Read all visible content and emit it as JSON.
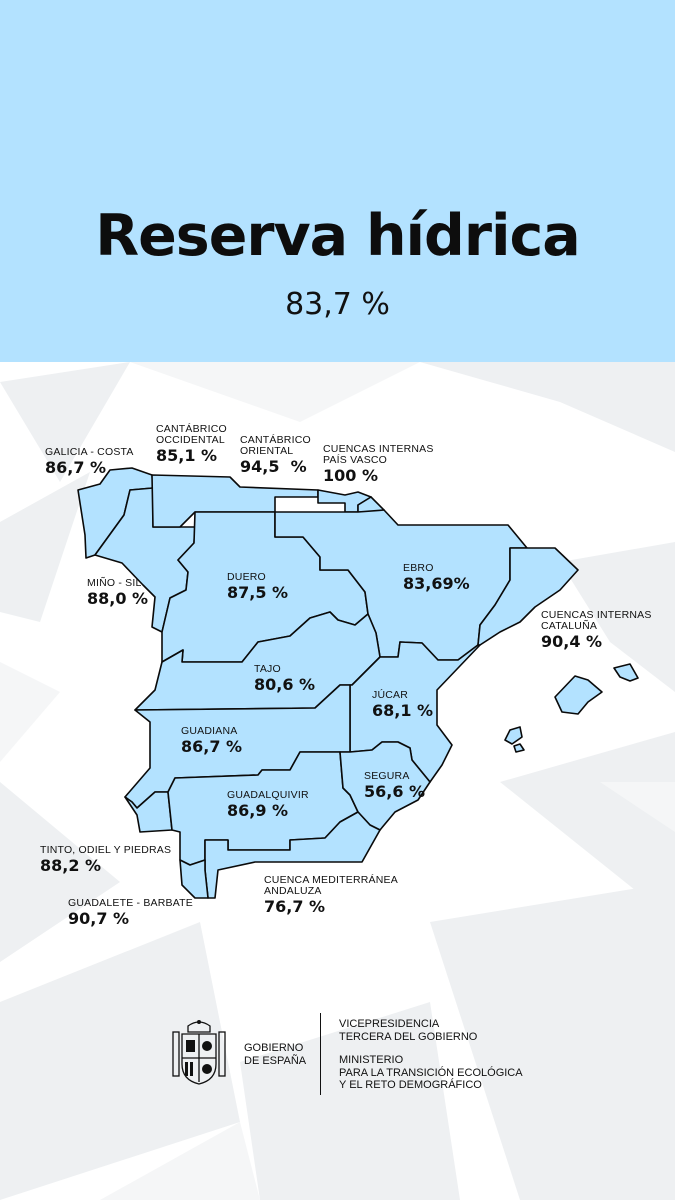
{
  "header": {
    "title": "Reserva hídrica",
    "total": "83,7 %"
  },
  "colors": {
    "header_bg": "#b3e2ff",
    "basin_fill": "#b3e2ff",
    "basin_stroke": "#0a0a0a"
  },
  "basins": [
    {
      "id": "galicia-costa",
      "name": "GALICIA - COSTA",
      "value": "86,7 %"
    },
    {
      "id": "cantabrico-occidental",
      "name_lines": [
        "CANTÁBRICO",
        "OCCIDENTAL"
      ],
      "value": "85,1 %"
    },
    {
      "id": "cantabrico-oriental",
      "name_lines": [
        "CANTÁBRICO",
        "ORIENTAL"
      ],
      "value": "94,5  %"
    },
    {
      "id": "cuencas-internas-pais-vasco",
      "name_lines": [
        "CUENCAS INTERNAS",
        "PAÍS VASCO"
      ],
      "value": "100 %"
    },
    {
      "id": "mino-sil",
      "name": "MIÑO - SIL",
      "value": "88,0 %"
    },
    {
      "id": "duero",
      "name": "DUERO",
      "value": "87,5 %"
    },
    {
      "id": "ebro",
      "name": "EBRO",
      "value": "83,69%"
    },
    {
      "id": "cuencas-internas-cataluna",
      "name_lines": [
        "CUENCAS INTERNAS",
        "CATALUÑA"
      ],
      "value": "90,4 %"
    },
    {
      "id": "tajo",
      "name": "TAJO",
      "value": "80,6 %"
    },
    {
      "id": "jucar",
      "name": "JÚCAR",
      "value": "68,1 %"
    },
    {
      "id": "guadiana",
      "name": "GUADIANA",
      "value": "86,7 %"
    },
    {
      "id": "segura",
      "name": "SEGURA",
      "value": "56,6 %"
    },
    {
      "id": "guadalquivir",
      "name": "GUADALQUIVIR",
      "value": "86,9 %"
    },
    {
      "id": "tinto-odiel-piedras",
      "name": "TINTO, ODIEL Y PIEDRAS",
      "value": "88,2 %"
    },
    {
      "id": "cuenca-mediterranea-andaluza",
      "name_lines": [
        "CUENCA MEDITERRÁNEA",
        "ANDALUZA"
      ],
      "value": "76,7 %"
    },
    {
      "id": "guadalete-barbate",
      "name": "GUADALETE - BARBATE",
      "value": "90,7 %"
    }
  ],
  "footer": {
    "gobierno_lines": [
      "GOBIERNO",
      "DE ESPAÑA"
    ],
    "vicepresidencia_lines": [
      "VICEPRESIDENCIA",
      "TERCERA DEL GOBIERNO"
    ],
    "ministerio_lines": [
      "MINISTERIO",
      "PARA LA TRANSICIÓN ECOLÓGICA",
      "Y EL RETO DEMOGRÁFICO"
    ]
  }
}
